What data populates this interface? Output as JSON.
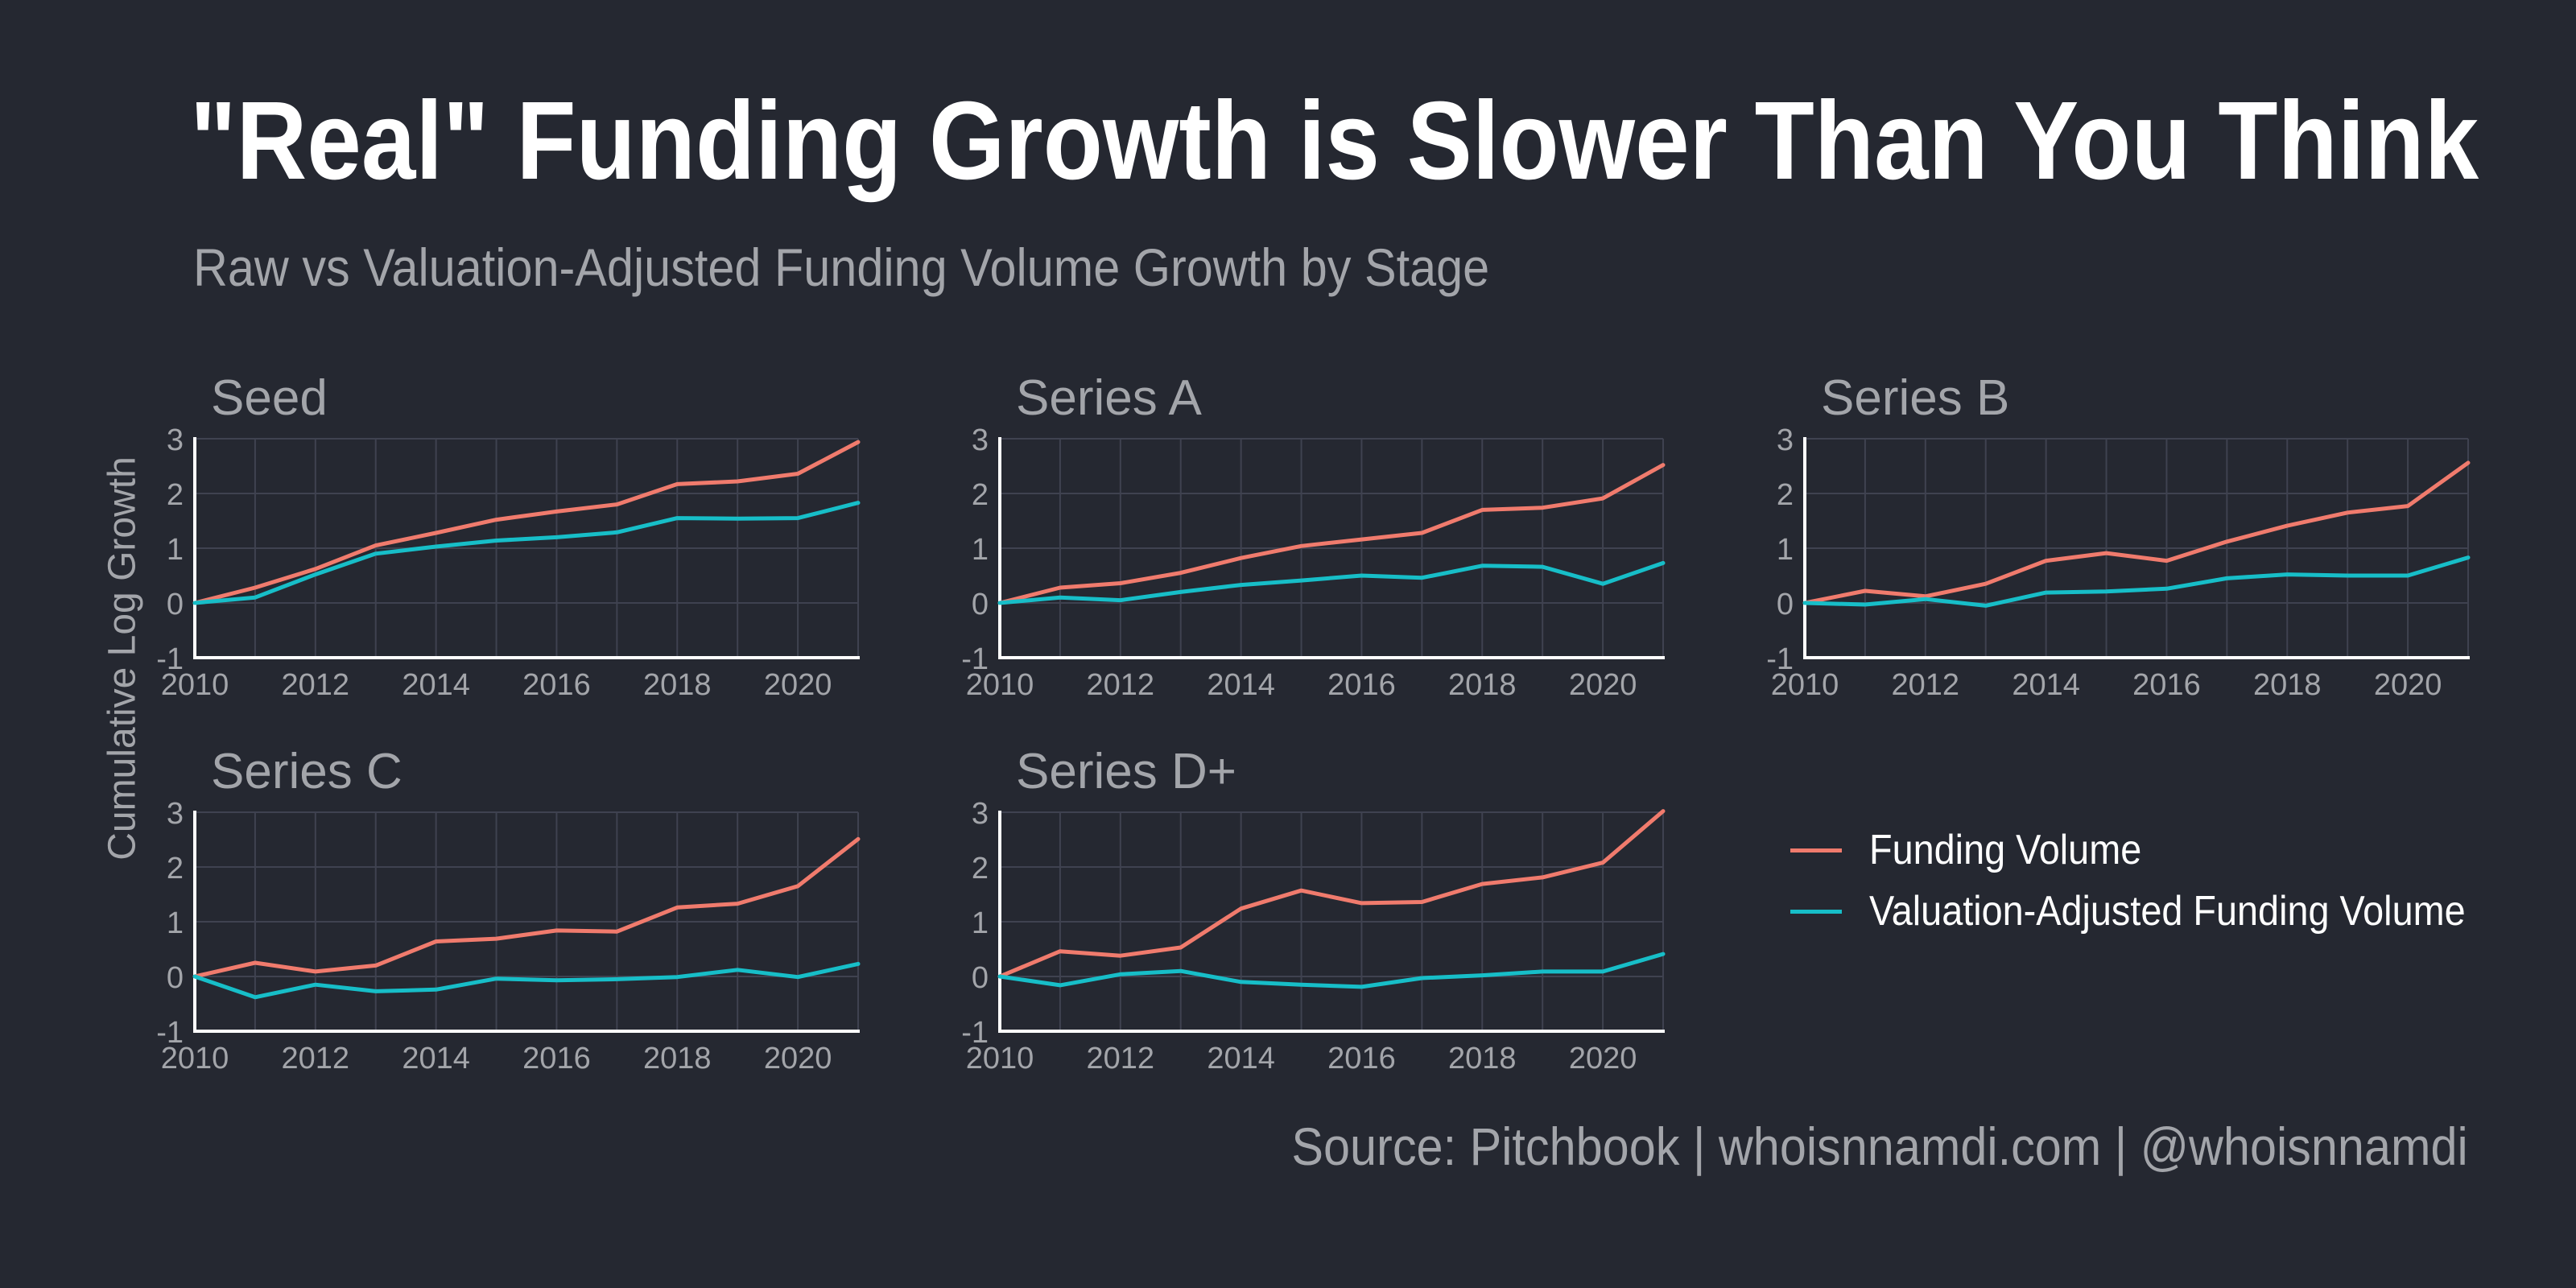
{
  "title": "\"Real\" Funding Growth is Slower Than You Think",
  "subtitle": "Raw vs Valuation-Adjusted Funding Volume Growth by Stage",
  "source": "Source: Pitchbook | whoisnnamdi.com | @whoisnnamdi",
  "colors": {
    "background": "#252831",
    "funding_volume": "#f07b6d",
    "valuation_adjusted": "#17bec8",
    "grid": "#3f4250",
    "tick_text": "#a3a5aa",
    "axis": "#ffffff"
  },
  "chart_data": {
    "type": "line",
    "ylabel": "Cumulative Log Growth",
    "xlabel": "",
    "x": [
      2010,
      2011,
      2012,
      2013,
      2014,
      2015,
      2016,
      2017,
      2018,
      2019,
      2020,
      2021
    ],
    "xlim": [
      2010,
      2021
    ],
    "ylim": [
      -1,
      3
    ],
    "x_ticks": [
      "2010",
      "2012",
      "2014",
      "2016",
      "2018",
      "2020"
    ],
    "y_ticks": [
      "-1",
      "0",
      "1",
      "2",
      "3"
    ],
    "grid": true,
    "legend_position": "bottom-right",
    "legend": [
      "Funding Volume",
      "Valuation-Adjusted Funding Volume"
    ],
    "panels": [
      {
        "title": "Seed",
        "series": [
          {
            "name": "Funding Volume",
            "values": [
              0,
              0.28,
              0.62,
              1.05,
              1.28,
              1.52,
              1.67,
              1.8,
              2.17,
              2.22,
              2.36,
              2.94
            ]
          },
          {
            "name": "Valuation-Adjusted Funding Volume",
            "values": [
              0,
              0.1,
              0.52,
              0.9,
              1.03,
              1.14,
              1.2,
              1.29,
              1.55,
              1.54,
              1.55,
              1.83
            ]
          }
        ]
      },
      {
        "title": "Series A",
        "series": [
          {
            "name": "Funding Volume",
            "values": [
              0,
              0.28,
              0.36,
              0.55,
              0.82,
              1.04,
              1.16,
              1.28,
              1.7,
              1.74,
              1.91,
              2.52
            ]
          },
          {
            "name": "Valuation-Adjusted Funding Volume",
            "values": [
              0,
              0.1,
              0.05,
              0.2,
              0.33,
              0.41,
              0.5,
              0.46,
              0.68,
              0.66,
              0.35,
              0.73
            ]
          }
        ]
      },
      {
        "title": "Series B",
        "series": [
          {
            "name": "Funding Volume",
            "values": [
              0,
              0.22,
              0.12,
              0.35,
              0.77,
              0.91,
              0.77,
              1.12,
              1.41,
              1.65,
              1.77,
              2.56
            ]
          },
          {
            "name": "Valuation-Adjusted Funding Volume",
            "values": [
              0,
              -0.03,
              0.07,
              -0.05,
              0.19,
              0.21,
              0.26,
              0.45,
              0.52,
              0.5,
              0.5,
              0.83
            ]
          }
        ]
      },
      {
        "title": "Series C",
        "series": [
          {
            "name": "Funding Volume",
            "values": [
              0,
              0.25,
              0.09,
              0.2,
              0.64,
              0.69,
              0.84,
              0.82,
              1.26,
              1.33,
              1.65,
              2.51
            ]
          },
          {
            "name": "Valuation-Adjusted Funding Volume",
            "values": [
              0,
              -0.38,
              -0.15,
              -0.27,
              -0.24,
              -0.04,
              -0.07,
              -0.05,
              -0.01,
              0.12,
              -0.01,
              0.23
            ]
          }
        ]
      },
      {
        "title": "Series D+",
        "series": [
          {
            "name": "Funding Volume",
            "values": [
              0,
              0.46,
              0.38,
              0.53,
              1.24,
              1.57,
              1.34,
              1.36,
              1.69,
              1.81,
              2.08,
              3.02
            ]
          },
          {
            "name": "Valuation-Adjusted Funding Volume",
            "values": [
              0,
              -0.16,
              0.04,
              0.1,
              -0.1,
              -0.15,
              -0.19,
              -0.03,
              0.02,
              0.09,
              0.09,
              0.41
            ]
          }
        ]
      }
    ]
  }
}
